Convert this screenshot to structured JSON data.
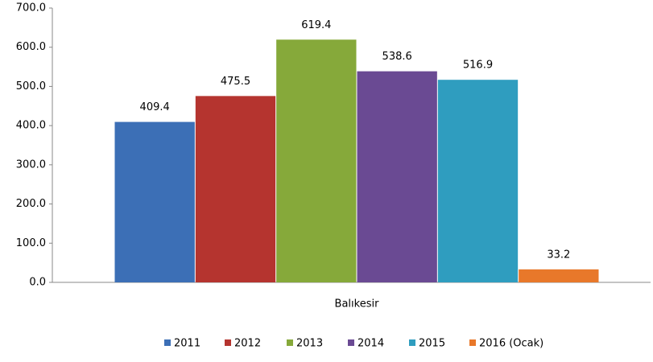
{
  "chart_data": {
    "type": "bar",
    "categories": [
      "Balıkesir"
    ],
    "series": [
      {
        "name": "2011",
        "color": "#3c6fb6",
        "values": [
          409.4
        ]
      },
      {
        "name": "2012",
        "color": "#b5342f",
        "values": [
          475.5
        ]
      },
      {
        "name": "2013",
        "color": "#86a93a",
        "values": [
          619.4
        ]
      },
      {
        "name": "2014",
        "color": "#6a4a93",
        "values": [
          538.6
        ]
      },
      {
        "name": "2015",
        "color": "#2f9dbf",
        "values": [
          516.9
        ]
      },
      {
        "name": "2016 (Ocak)",
        "color": "#e8782a",
        "values": [
          33.2
        ]
      }
    ],
    "ylim": [
      0,
      700
    ],
    "yticks": [
      {
        "value": 0,
        "label": "0.0"
      },
      {
        "value": 100,
        "label": "100.0"
      },
      {
        "value": 200,
        "label": "200.0"
      },
      {
        "value": 300,
        "label": "300.0"
      },
      {
        "value": 400,
        "label": "400.0"
      },
      {
        "value": 500,
        "label": "500.0"
      },
      {
        "value": 600,
        "label": "600.0"
      },
      {
        "value": 700,
        "label": "700.0"
      }
    ],
    "grid": false,
    "legend": "bottom"
  }
}
